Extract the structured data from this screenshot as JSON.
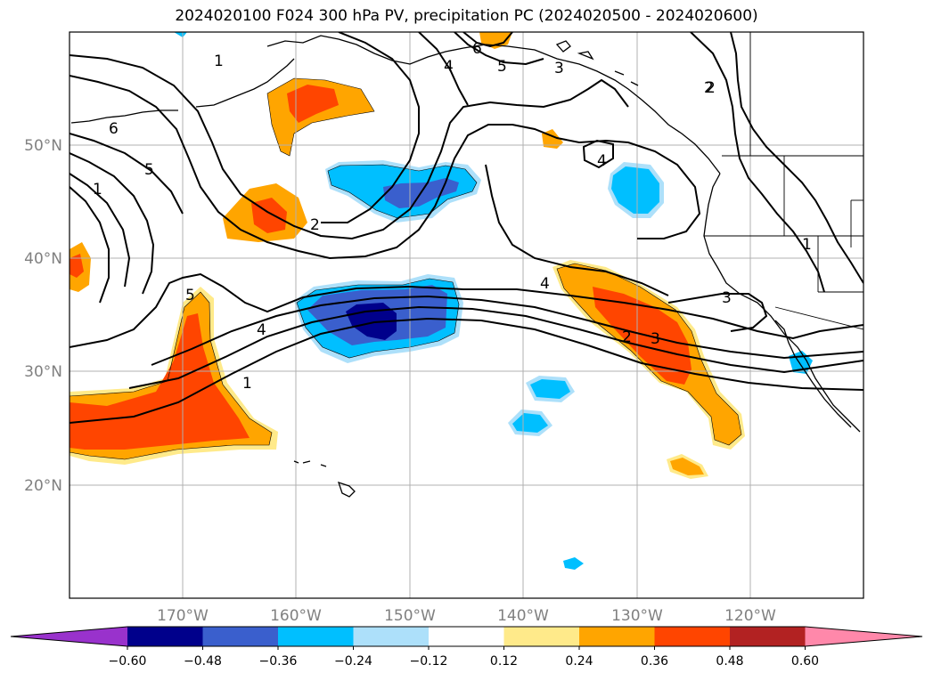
{
  "title": "2024020100 F024 300 hPa PV, precipitation PC (2024020500 - 2024020600)",
  "lat_ticks": [
    "50°N",
    "40°N",
    "30°N",
    "20°N"
  ],
  "lon_ticks": [
    "170°W",
    "160°W",
    "150°W",
    "140°W",
    "130°W",
    "120°W"
  ],
  "colorbar": {
    "ticks": [
      "−0.60",
      "−0.48",
      "−0.36",
      "−0.24",
      "−0.12",
      "0.12",
      "0.24",
      "0.36",
      "0.48",
      "0.60"
    ],
    "colors": [
      "#9932CC",
      "#00008B",
      "#3A5FCD",
      "#00BFFF",
      "#ADE0FA",
      "#FFFFFF",
      "#FFEA8A",
      "#FFA500",
      "#FF4500",
      "#B22222",
      "#FF88AA"
    ]
  },
  "contour_labels": [
    "1",
    "6",
    "4",
    "5",
    "3",
    "2",
    "6",
    "5",
    "1",
    "2",
    "4",
    "5",
    "4",
    "1",
    "4",
    "2",
    "3",
    "3",
    "1",
    "2",
    "1"
  ]
}
